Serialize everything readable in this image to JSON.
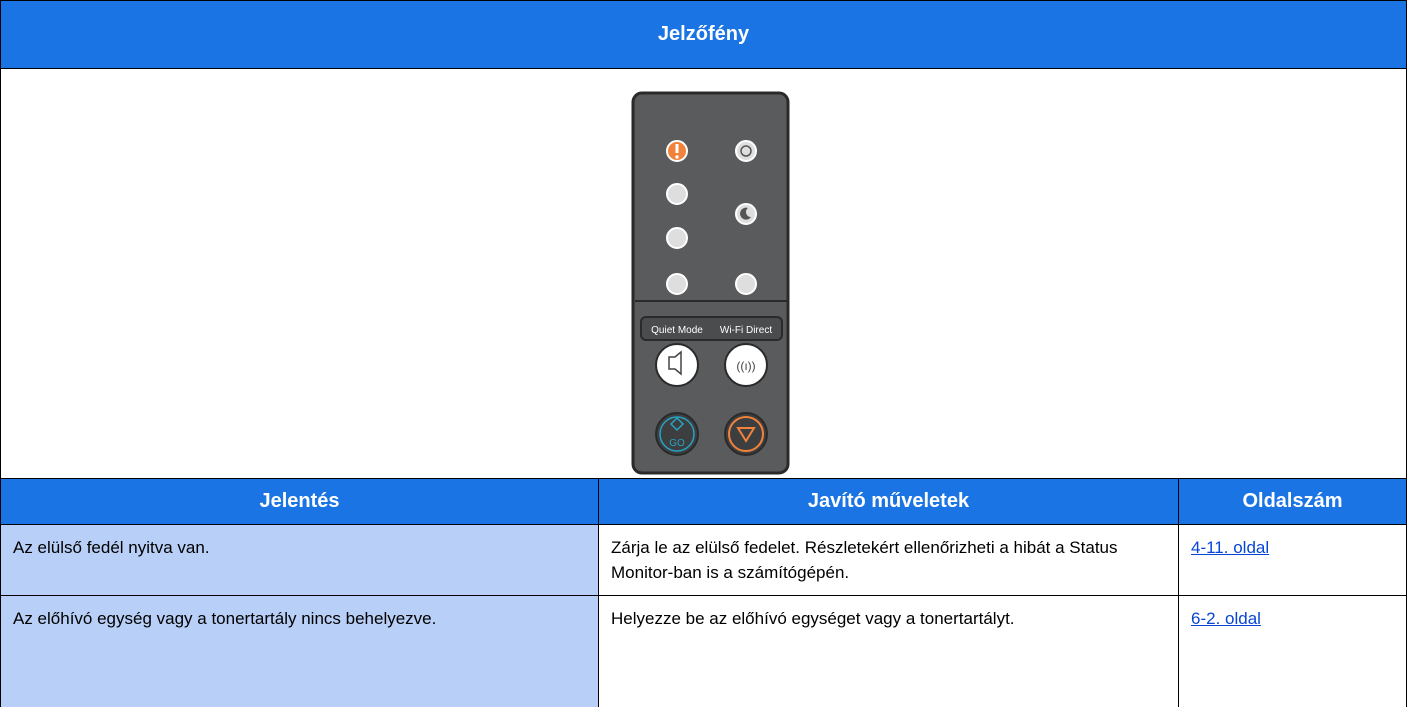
{
  "header": {
    "title": "Jelzőfény"
  },
  "panel": {
    "labels": [
      "Quiet Mode",
      "Wi-Fi Direct"
    ],
    "go": "GO"
  },
  "table": {
    "columns": [
      "Jelentés",
      "Javító műveletek",
      "Oldalszám"
    ],
    "rows": [
      [
        "Az elülső fedél nyitva van.",
        "Zárja le az elülső fedelet. Részletekért ellenőrizheti a hibát a Status Monitor-ban is a számítógépén.",
        "4-11. oldal"
      ],
      [
        "Az előhívó egység vagy a tonertartály nincs behelyezve.",
        "Helyezze be az előhívó egységet vagy a tonertartályt.",
        "6-2. oldal"
      ]
    ]
  }
}
